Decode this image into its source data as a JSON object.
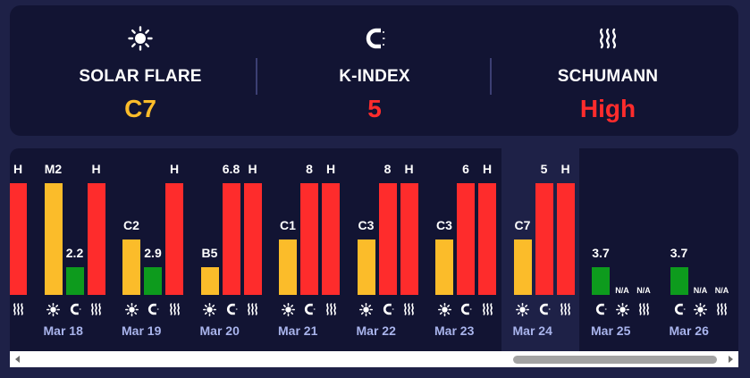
{
  "summary": {
    "solar": {
      "label": "SOLAR FLARE",
      "value": "C7",
      "color": "#fbbc2a",
      "icon": "sun-icon"
    },
    "kindex": {
      "label": "K-INDEX",
      "value": "5",
      "color": "#fe2c2c",
      "icon": "magnet-icon"
    },
    "schumann": {
      "label": "SCHUMANN",
      "value": "High",
      "color": "#fe2c2c",
      "icon": "waves-icon"
    }
  },
  "colors": {
    "yellow": "#fbbc2a",
    "red": "#fe2c2c",
    "green": "#0d9b1d",
    "date": "#a9b4ec"
  },
  "timeline": {
    "days": [
      {
        "date": "",
        "solar": "",
        "kindex": "",
        "schumann": "H"
      },
      {
        "date": "Mar 18",
        "solar": "M2",
        "kindex": "2.2",
        "schumann": "H"
      },
      {
        "date": "Mar 19",
        "solar": "C2",
        "kindex": "2.9",
        "schumann": "H"
      },
      {
        "date": "Mar 20",
        "solar": "B5",
        "kindex": "6.8",
        "schumann": "H"
      },
      {
        "date": "Mar 21",
        "solar": "C1",
        "kindex": "8",
        "schumann": "H"
      },
      {
        "date": "Mar 22",
        "solar": "C3",
        "kindex": "8",
        "schumann": "H"
      },
      {
        "date": "Mar 23",
        "solar": "C3",
        "kindex": "6",
        "schumann": "H"
      },
      {
        "date": "Mar 24",
        "solar": "C7",
        "kindex": "5",
        "schumann": "H"
      },
      {
        "date": "Mar 25",
        "kindex": "3.7",
        "solar": "N/A",
        "schumann": "N/A"
      },
      {
        "date": "Mar 26",
        "kindex": "3.7",
        "solar": "N/A",
        "schumann": "N/A"
      }
    ]
  }
}
